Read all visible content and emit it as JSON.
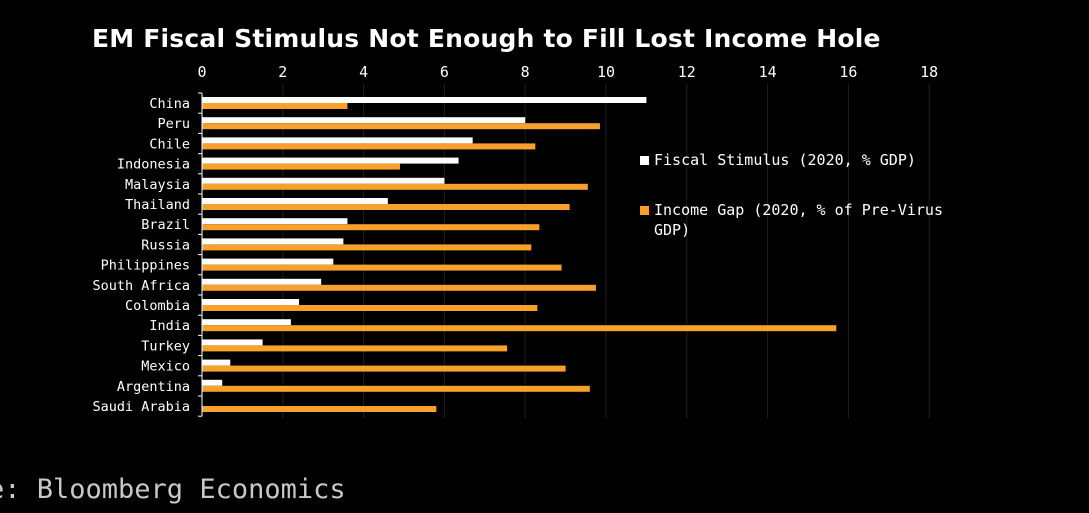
{
  "chart_data": {
    "type": "bar",
    "orientation": "horizontal",
    "title": "EM Fiscal Stimulus Not Enough to Fill Lost Income Hole",
    "categories": [
      "China",
      "Peru",
      "Chile",
      "Indonesia",
      "Malaysia",
      "Thailand",
      "Brazil",
      "Russia",
      "Philippines",
      "South Africa",
      "Colombia",
      "India",
      "Turkey",
      "Mexico",
      "Argentina",
      "Saudi Arabia"
    ],
    "series": [
      {
        "name": "Fiscal Stimulus (2020, % GDP)",
        "color": "#ffffff",
        "values": [
          11.0,
          8.0,
          6.7,
          6.35,
          6.0,
          4.6,
          3.6,
          3.5,
          3.25,
          2.95,
          2.4,
          2.2,
          1.5,
          0.7,
          0.5,
          0.0
        ]
      },
      {
        "name": "Income Gap (2020, % of Pre-Virus GDP)",
        "color": "#f7a12c",
        "values": [
          3.6,
          9.85,
          8.25,
          4.9,
          9.55,
          9.1,
          8.35,
          8.15,
          8.9,
          9.75,
          8.3,
          15.7,
          7.55,
          9.0,
          9.6,
          5.8
        ]
      }
    ],
    "xlim": [
      0,
      18
    ],
    "xticks": [
      0,
      2,
      4,
      6,
      8,
      10,
      12,
      14,
      16,
      18
    ],
    "grid": true,
    "legend_position": "right"
  },
  "legend": {
    "fiscal_label": "Fiscal Stimulus (2020, % GDP)",
    "income_label": "Income Gap (2020, % of Pre-Virus GDP)"
  },
  "source": "e: Bloomberg Economics"
}
